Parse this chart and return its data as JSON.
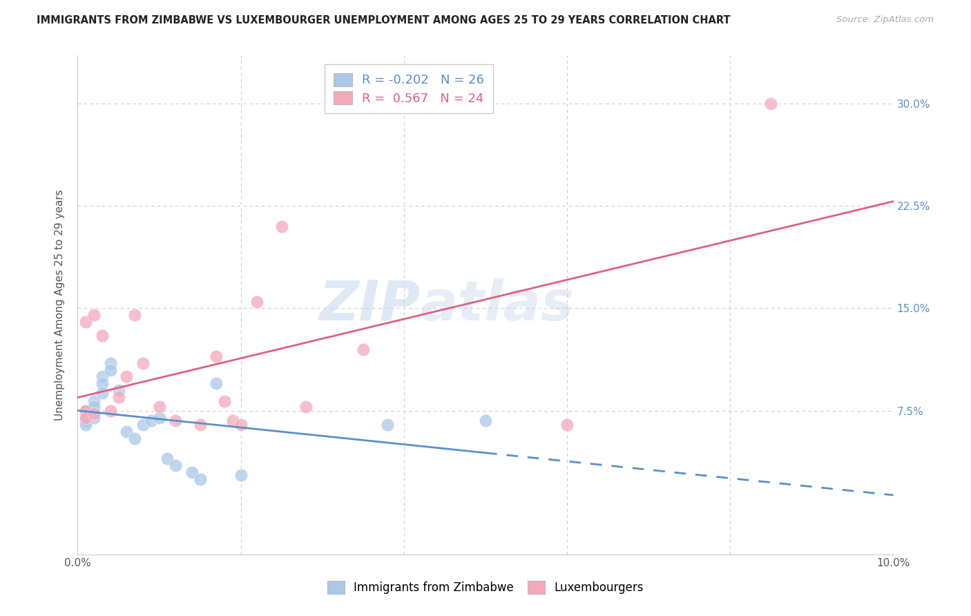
{
  "title": "IMMIGRANTS FROM ZIMBABWE VS LUXEMBOURGER UNEMPLOYMENT AMONG AGES 25 TO 29 YEARS CORRELATION CHART",
  "source": "Source: ZipAtlas.com",
  "ylabel": "Unemployment Among Ages 25 to 29 years",
  "xlim": [
    0.0,
    0.1
  ],
  "ylim": [
    -0.03,
    0.335
  ],
  "x_ticks": [
    0.0,
    0.02,
    0.04,
    0.06,
    0.08,
    0.1
  ],
  "x_tick_labels": [
    "0.0%",
    "",
    "",
    "",
    "",
    "10.0%"
  ],
  "y_ticks": [
    0.075,
    0.15,
    0.225,
    0.3
  ],
  "y_tick_labels": [
    "7.5%",
    "15.0%",
    "22.5%",
    "30.0%"
  ],
  "legend_blue_label": "Immigrants from Zimbabwe",
  "legend_pink_label": "Luxembourgers",
  "R_blue": -0.202,
  "N_blue": 26,
  "R_pink": 0.567,
  "N_pink": 24,
  "blue_scatter_color": "#aac8e8",
  "pink_scatter_color": "#f4a8bc",
  "blue_line_color": "#5b8fc9",
  "pink_line_color": "#e06080",
  "watermark_zip": "ZIP",
  "watermark_atlas": "atlas",
  "blue_x": [
    0.001,
    0.001,
    0.001,
    0.001,
    0.002,
    0.002,
    0.002,
    0.003,
    0.003,
    0.003,
    0.004,
    0.004,
    0.005,
    0.006,
    0.007,
    0.008,
    0.009,
    0.01,
    0.011,
    0.012,
    0.014,
    0.015,
    0.017,
    0.02,
    0.038,
    0.05
  ],
  "blue_y": [
    0.075,
    0.072,
    0.068,
    0.065,
    0.082,
    0.078,
    0.07,
    0.1,
    0.095,
    0.088,
    0.11,
    0.105,
    0.09,
    0.06,
    0.055,
    0.065,
    0.068,
    0.07,
    0.04,
    0.035,
    0.03,
    0.025,
    0.095,
    0.028,
    0.065,
    0.068
  ],
  "pink_x": [
    0.001,
    0.001,
    0.001,
    0.002,
    0.002,
    0.003,
    0.004,
    0.005,
    0.006,
    0.007,
    0.008,
    0.01,
    0.012,
    0.015,
    0.017,
    0.018,
    0.019,
    0.02,
    0.022,
    0.025,
    0.028,
    0.035,
    0.06,
    0.085
  ],
  "pink_y": [
    0.075,
    0.07,
    0.14,
    0.073,
    0.145,
    0.13,
    0.075,
    0.085,
    0.1,
    0.145,
    0.11,
    0.078,
    0.068,
    0.065,
    0.115,
    0.082,
    0.068,
    0.065,
    0.155,
    0.21,
    0.078,
    0.12,
    0.065,
    0.3
  ],
  "blue_line_solid_end": 0.05,
  "blue_line_dash_end": 0.1
}
